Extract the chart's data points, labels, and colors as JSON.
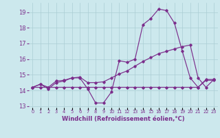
{
  "xlabel": "Windchill (Refroidissement éolien,°C)",
  "background_color": "#cce8ed",
  "grid_color": "#aacdd4",
  "line_color": "#7b2d8b",
  "x_hours": [
    0,
    1,
    2,
    3,
    4,
    5,
    6,
    7,
    8,
    9,
    10,
    11,
    12,
    13,
    14,
    15,
    16,
    17,
    18,
    19,
    20,
    21,
    22,
    23
  ],
  "series1": [
    14.2,
    14.4,
    14.1,
    14.5,
    14.6,
    14.8,
    14.8,
    14.1,
    13.2,
    13.2,
    13.9,
    15.9,
    15.8,
    16.0,
    18.2,
    18.6,
    19.2,
    19.1,
    18.3,
    16.5,
    14.8,
    14.2,
    14.7,
    14.7
  ],
  "series2": [
    14.2,
    14.4,
    14.2,
    14.6,
    14.65,
    14.8,
    14.85,
    14.5,
    14.5,
    14.55,
    14.8,
    15.05,
    15.25,
    15.55,
    15.85,
    16.1,
    16.35,
    16.5,
    16.65,
    16.8,
    16.9,
    14.8,
    14.2,
    14.7
  ],
  "series3": [
    14.2,
    14.2,
    14.2,
    14.2,
    14.2,
    14.2,
    14.2,
    14.2,
    14.2,
    14.2,
    14.2,
    14.2,
    14.2,
    14.2,
    14.2,
    14.2,
    14.2,
    14.2,
    14.2,
    14.2,
    14.2,
    14.2,
    14.65,
    14.65
  ],
  "ylim": [
    12.9,
    19.6
  ],
  "yticks": [
    13,
    14,
    15,
    16,
    17,
    18,
    19
  ],
  "xlim": [
    -0.5,
    23.5
  ]
}
